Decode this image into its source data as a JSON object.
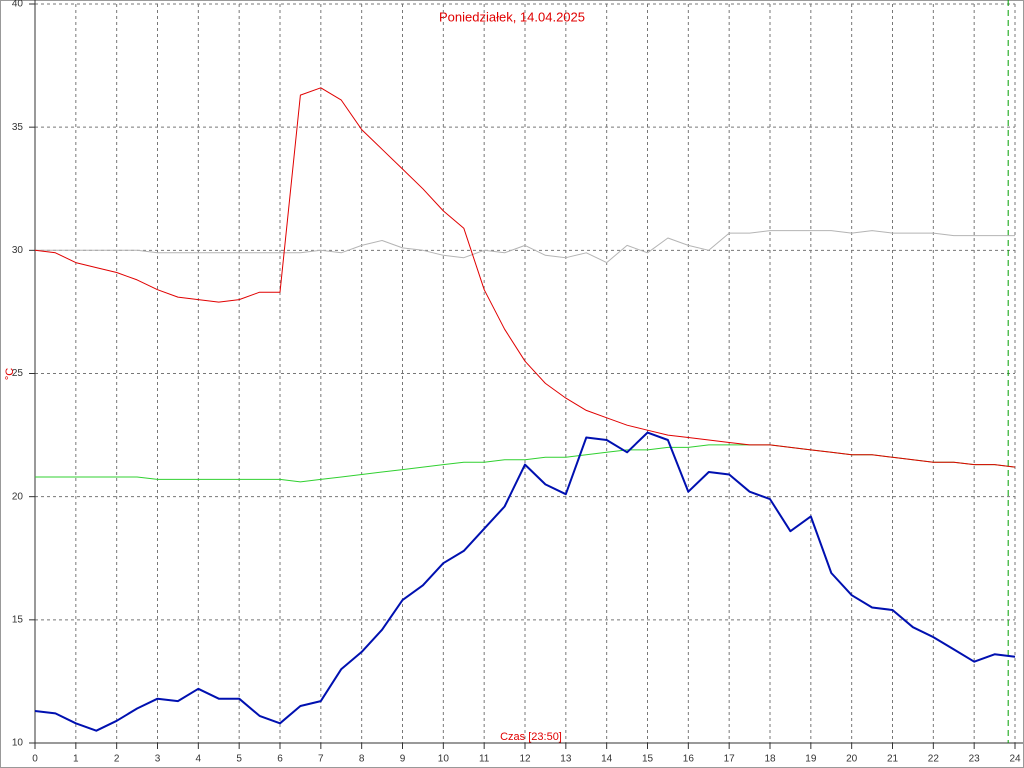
{
  "chart_data": {
    "type": "line",
    "title": "Poniedziałek, 14.04.2025",
    "y_label": "°C",
    "x_label": "Czas [23:50]",
    "x": [
      0,
      0.5,
      1,
      1.5,
      2,
      2.5,
      3,
      3.5,
      4,
      4.5,
      5,
      5.5,
      6,
      6.5,
      7,
      7.5,
      8,
      8.5,
      9,
      9.5,
      10,
      10.5,
      11,
      11.5,
      12,
      12.5,
      13,
      13.5,
      14,
      14.5,
      15,
      15.5,
      16,
      16.5,
      17,
      17.5,
      18,
      18.5,
      19,
      19.5,
      20,
      20.5,
      21,
      21.5,
      22,
      22.5,
      23,
      23.5,
      24
    ],
    "series": [
      {
        "color": "#b4b4b4",
        "width": 1,
        "values": [
          30.0,
          30.0,
          30.0,
          30.0,
          30.0,
          30.0,
          29.9,
          29.9,
          29.9,
          29.9,
          29.9,
          29.9,
          29.9,
          29.9,
          30.0,
          29.9,
          30.2,
          30.4,
          30.1,
          30.0,
          29.8,
          29.7,
          30.0,
          29.9,
          30.2,
          29.8,
          29.7,
          29.9,
          29.5,
          30.2,
          29.9,
          30.5,
          30.2,
          30.0,
          30.7,
          30.7,
          30.8,
          30.8,
          30.8,
          30.8,
          30.7,
          30.8,
          30.7,
          30.7,
          30.7,
          30.6,
          30.6,
          30.6,
          30.6
        ]
      },
      {
        "color": "#30d030",
        "width": 1,
        "values": [
          20.8,
          20.8,
          20.8,
          20.8,
          20.8,
          20.8,
          20.7,
          20.7,
          20.7,
          20.7,
          20.7,
          20.7,
          20.7,
          20.6,
          20.7,
          20.8,
          20.9,
          21.0,
          21.1,
          21.2,
          21.3,
          21.4,
          21.4,
          21.5,
          21.5,
          21.6,
          21.6,
          21.7,
          21.8,
          21.9,
          21.9,
          22.0,
          22.0,
          22.1,
          22.1,
          22.1,
          22.1,
          22.0,
          21.9,
          21.8,
          21.7,
          21.7,
          21.6,
          21.5,
          21.4,
          21.4,
          21.3,
          21.3,
          21.2
        ]
      },
      {
        "color": "#e00000",
        "width": 1,
        "values": [
          30.0,
          29.9,
          29.5,
          29.3,
          29.1,
          28.8,
          28.4,
          28.1,
          28.0,
          27.9,
          28.0,
          28.3,
          28.3,
          36.3,
          36.6,
          36.1,
          34.9,
          34.1,
          33.3,
          32.5,
          31.6,
          30.9,
          28.4,
          26.8,
          25.5,
          24.6,
          24.0,
          23.5,
          23.2,
          22.9,
          22.7,
          22.5,
          22.4,
          22.3,
          22.2,
          22.1,
          22.1,
          22.0,
          21.9,
          21.8,
          21.7,
          21.7,
          21.6,
          21.5,
          21.4,
          21.4,
          21.3,
          21.3,
          21.2
        ]
      },
      {
        "color": "#0010b0",
        "width": 2,
        "values": [
          11.3,
          11.2,
          10.8,
          10.5,
          10.9,
          11.4,
          11.8,
          11.7,
          12.2,
          11.8,
          11.8,
          11.1,
          10.8,
          11.5,
          11.7,
          13.0,
          13.7,
          14.6,
          15.8,
          16.4,
          17.3,
          17.8,
          18.7,
          19.6,
          21.3,
          20.5,
          20.1,
          22.4,
          22.3,
          21.8,
          22.6,
          22.3,
          20.2,
          21.0,
          20.9,
          20.2,
          19.9,
          18.6,
          19.2,
          16.9,
          16.0,
          15.5,
          15.4,
          14.7,
          14.3,
          13.8,
          13.3,
          13.6,
          13.5
        ]
      }
    ],
    "marker_x": 23.833,
    "marker_color": "#00a000",
    "xlim": [
      0,
      24
    ],
    "xticks": [
      0,
      1,
      2,
      3,
      4,
      5,
      6,
      7,
      8,
      9,
      10,
      11,
      12,
      13,
      14,
      15,
      16,
      17,
      18,
      19,
      20,
      21,
      22,
      23,
      24
    ],
    "ylim": [
      10,
      40
    ],
    "yticks": [
      10,
      15,
      20,
      25,
      30,
      35,
      40
    ],
    "grid": true
  }
}
